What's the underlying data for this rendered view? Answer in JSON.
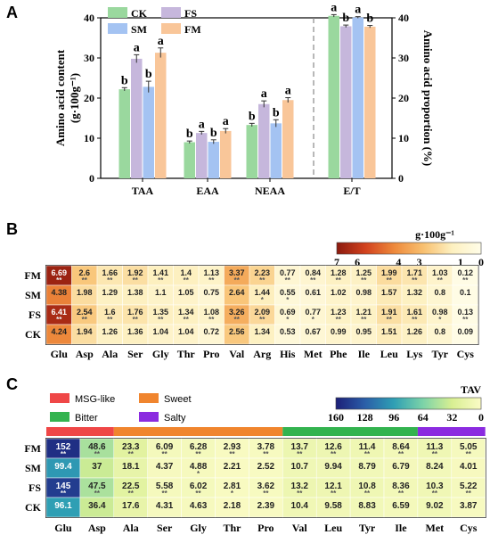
{
  "chart_data": [
    {
      "panel": "A",
      "type": "bar",
      "categories": [
        "TAA",
        "EAA",
        "NEAA",
        "E/T"
      ],
      "series": [
        {
          "name": "CK",
          "color": "#9ad89e",
          "values": [
            22.2,
            9.0,
            13.3,
            40.5
          ],
          "errors": [
            0.4,
            0.3,
            0.4,
            0.3
          ],
          "letters": [
            "b",
            "b",
            "b",
            "a"
          ]
        },
        {
          "name": "FS",
          "color": "#c6b7dc",
          "values": [
            29.8,
            11.3,
            18.5,
            37.9
          ],
          "errors": [
            1.0,
            0.4,
            0.8,
            0.3
          ],
          "letters": [
            "a",
            "a",
            "a",
            "b"
          ]
        },
        {
          "name": "SM",
          "color": "#a4c3f2",
          "values": [
            22.8,
            9.1,
            13.7,
            40.1
          ],
          "errors": [
            1.4,
            0.5,
            0.9,
            0.2
          ],
          "letters": [
            "b",
            "b",
            "b",
            "a"
          ]
        },
        {
          "name": "FM",
          "color": "#f9c699",
          "values": [
            31.3,
            11.8,
            19.5,
            37.8
          ],
          "errors": [
            1.2,
            0.6,
            0.6,
            0.3
          ],
          "letters": [
            "a",
            "a",
            "a",
            "b"
          ]
        }
      ],
      "ylabel_left_line1": "Amino acid content",
      "ylabel_left_line2": "(g·100g⁻¹)",
      "ylabel_right": "Amino acid proportion (%)",
      "ylim": [
        0,
        40
      ],
      "yticks": [
        "0",
        "10",
        "20",
        "30",
        "40"
      ],
      "legend_position": "top-left"
    },
    {
      "panel": "B",
      "type": "heatmap",
      "x": [
        "Glu",
        "Asp",
        "Ala",
        "Ser",
        "Gly",
        "Thr",
        "Pro",
        "Val",
        "Arg",
        "His",
        "Met",
        "Phe",
        "Ile",
        "Leu",
        "Lys",
        "Tyr",
        "Cys"
      ],
      "y": [
        "FM",
        "SM",
        "FS",
        "CK"
      ],
      "values": [
        [
          6.69,
          2.6,
          1.66,
          1.92,
          1.41,
          1.4,
          1.13,
          3.37,
          2.23,
          0.77,
          0.84,
          1.28,
          1.25,
          1.99,
          1.71,
          1.03,
          0.12
        ],
        [
          4.38,
          1.98,
          1.29,
          1.38,
          1.1,
          1.05,
          0.75,
          2.64,
          1.44,
          0.55,
          0.61,
          1.02,
          0.98,
          1.57,
          1.32,
          0.8,
          0.1
        ],
        [
          6.41,
          2.54,
          1.6,
          1.76,
          1.35,
          1.34,
          1.08,
          3.26,
          2.09,
          0.69,
          0.77,
          1.23,
          1.21,
          1.91,
          1.61,
          0.98,
          0.13
        ],
        [
          4.24,
          1.94,
          1.26,
          1.36,
          1.04,
          1.04,
          0.72,
          2.56,
          1.34,
          0.53,
          0.67,
          0.99,
          0.95,
          1.51,
          1.26,
          0.8,
          0.09
        ]
      ],
      "labels": [
        [
          "6.69",
          "2.6",
          "1.66",
          "1.92",
          "1.41",
          "1.4",
          "1.13",
          "3.37",
          "2.23",
          "0.77",
          "0.84",
          "1.28",
          "1.25",
          "1.99",
          "1.71",
          "1.03",
          "0.12"
        ],
        [
          "4.38",
          "1.98",
          "1.29",
          "1.38",
          "1.1",
          "1.05",
          "0.75",
          "2.64",
          "1.44",
          "0.55",
          "0.61",
          "1.02",
          "0.98",
          "1.57",
          "1.32",
          "0.8",
          "0.1"
        ],
        [
          "6.41",
          "2.54",
          "1.6",
          "1.76",
          "1.35",
          "1.34",
          "1.08",
          "3.26",
          "2.09",
          "0.69",
          "0.77",
          "1.23",
          "1.21",
          "1.91",
          "1.61",
          "0.98",
          "0.13"
        ],
        [
          "4.24",
          "1.94",
          "1.26",
          "1.36",
          "1.04",
          "1.04",
          "0.72",
          "2.56",
          "1.34",
          "0.53",
          "0.67",
          "0.99",
          "0.95",
          "1.51",
          "1.26",
          "0.8",
          "0.09"
        ]
      ],
      "sig": [
        [
          "**",
          "**",
          "**",
          "**",
          "**",
          "**",
          "**",
          "**",
          "**",
          "**",
          "**",
          "**",
          "**",
          "**",
          "**",
          "**",
          "**"
        ],
        [
          "",
          "",
          "",
          "",
          "",
          "",
          "",
          "",
          "*",
          "*",
          "",
          "",
          "",
          "",
          "",
          "",
          ""
        ],
        [
          "**",
          "**",
          "**",
          "**",
          "**",
          "**",
          "**",
          "**",
          "**",
          "*",
          "*",
          "**",
          "**",
          "**",
          "**",
          "*",
          "**"
        ],
        [
          "",
          "",
          "",
          "",
          "",
          "",
          "",
          "",
          "",
          "",
          "",
          "",
          "",
          "",
          "",
          "",
          ""
        ]
      ],
      "colorbar_title": "g·100g⁻¹",
      "colorbar_ticks": [
        "7",
        "6",
        "4",
        "3",
        "1",
        "0"
      ],
      "colorbar_range": [
        0,
        7
      ],
      "colors": [
        "#8b1a0e",
        "#d2421e",
        "#ee8a3c",
        "#f8c070",
        "#fdf0c0",
        "#fffde8"
      ]
    },
    {
      "panel": "C",
      "type": "heatmap",
      "x": [
        "Glu",
        "Asp",
        "Ala",
        "Ser",
        "Gly",
        "Thr",
        "Pro",
        "Val",
        "Leu",
        "Tyr",
        "Ile",
        "Met",
        "Cys"
      ],
      "y": [
        "FM",
        "SM",
        "FS",
        "CK"
      ],
      "values": [
        [
          152,
          48.6,
          23.3,
          6.09,
          6.28,
          2.93,
          3.78,
          13.7,
          12.6,
          11.4,
          8.64,
          11.3,
          5.05
        ],
        [
          99.4,
          37,
          18.1,
          4.37,
          4.88,
          2.21,
          2.52,
          10.7,
          9.94,
          8.79,
          6.79,
          8.24,
          4.01
        ],
        [
          145,
          47.5,
          22.5,
          5.58,
          6.02,
          2.81,
          3.62,
          13.2,
          12.1,
          10.8,
          8.36,
          10.3,
          5.22
        ],
        [
          96.1,
          36.4,
          17.6,
          4.31,
          4.63,
          2.18,
          2.39,
          10.4,
          9.58,
          8.83,
          6.59,
          9.02,
          3.87
        ]
      ],
      "labels": [
        [
          "152",
          "48.6",
          "23.3",
          "6.09",
          "6.28",
          "2.93",
          "3.78",
          "13.7",
          "12.6",
          "11.4",
          "8.64",
          "11.3",
          "5.05"
        ],
        [
          "99.4",
          "37",
          "18.1",
          "4.37",
          "4.88",
          "2.21",
          "2.52",
          "10.7",
          "9.94",
          "8.79",
          "6.79",
          "8.24",
          "4.01"
        ],
        [
          "145",
          "47.5",
          "22.5",
          "5.58",
          "6.02",
          "2.81",
          "3.62",
          "13.2",
          "12.1",
          "10.8",
          "8.36",
          "10.3",
          "5.22"
        ],
        [
          "96.1",
          "36.4",
          "17.6",
          "4.31",
          "4.63",
          "2.18",
          "2.39",
          "10.4",
          "9.58",
          "8.83",
          "6.59",
          "9.02",
          "3.87"
        ]
      ],
      "sig": [
        [
          "**",
          "**",
          "**",
          "**",
          "**",
          "**",
          "**",
          "**",
          "**",
          "**",
          "**",
          "**",
          "**"
        ],
        [
          "",
          "",
          "",
          "",
          "*",
          "",
          "",
          "",
          "",
          "",
          "",
          "",
          ""
        ],
        [
          "**",
          "**",
          "**",
          "**",
          "**",
          "*",
          "**",
          "**",
          "**",
          "**",
          "**",
          "**",
          "**"
        ],
        [
          "",
          "",
          "",
          "",
          "",
          "",
          "",
          "",
          "",
          "",
          "",
          "",
          ""
        ]
      ],
      "taste_groups": [
        {
          "name": "MSG-like",
          "color": "#ef4747",
          "count": 2
        },
        {
          "name": "Sweet",
          "color": "#f0852e",
          "count": 5
        },
        {
          "name": "Bitter",
          "color": "#33b34f",
          "count": 4
        },
        {
          "name": "Salty",
          "color": "#8b2be0",
          "count": 2
        }
      ],
      "colorbar_title": "TAV",
      "colorbar_ticks": [
        "160",
        "128",
        "96",
        "64",
        "32",
        "0"
      ],
      "colorbar_range": [
        0,
        160
      ],
      "colors": [
        "#1c1f78",
        "#2a5ea8",
        "#2f9fb4",
        "#7cd3a8",
        "#d8ef92",
        "#fbfbc6"
      ]
    }
  ]
}
